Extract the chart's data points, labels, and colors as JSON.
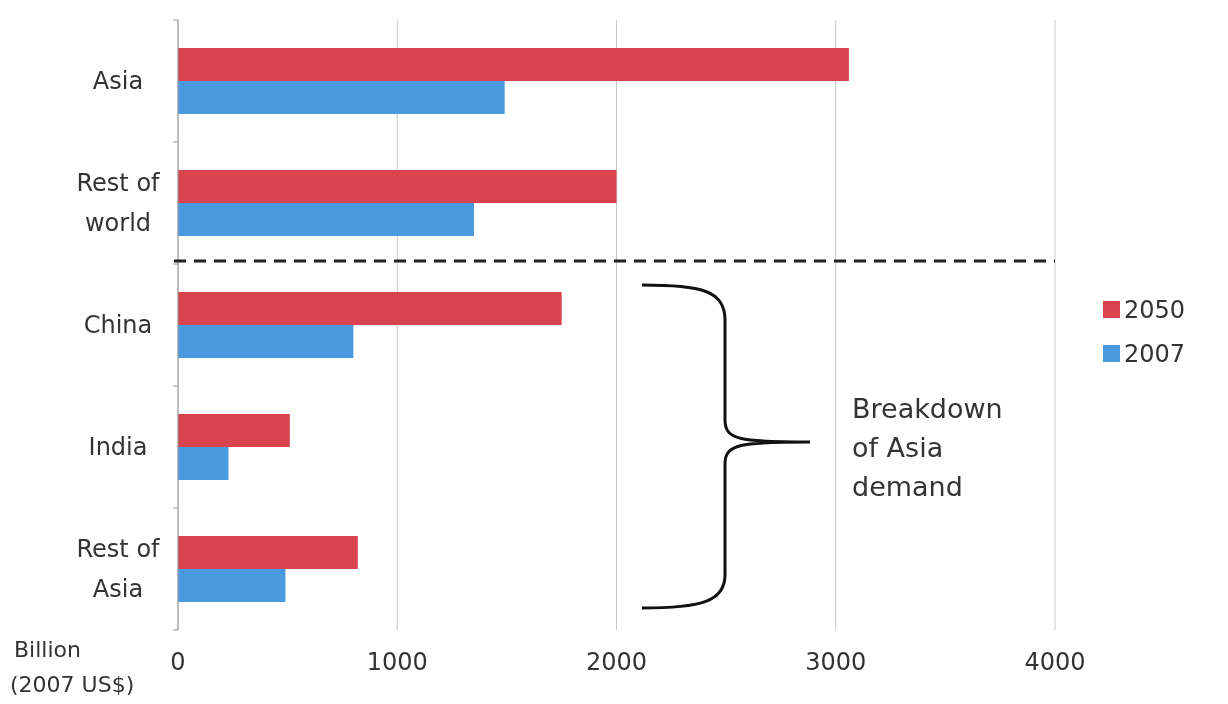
{
  "chart_data": {
    "type": "bar",
    "orientation": "horizontal",
    "categories": [
      "Asia",
      "Rest of world",
      "China",
      "India",
      "Rest of Asia"
    ],
    "series": [
      {
        "name": "2050",
        "color": "#d9434e",
        "values": [
          3060,
          2000,
          1750,
          510,
          820
        ]
      },
      {
        "name": "2007",
        "color": "#4a9ae0",
        "values": [
          1490,
          1350,
          800,
          230,
          490
        ]
      }
    ],
    "xlabel": "Billion (2007 US$)",
    "xlim": [
      0,
      4000
    ],
    "xticks": [
      0,
      1000,
      2000,
      3000,
      4000
    ],
    "grid": "x",
    "legend": "right",
    "annotations": [
      "Breakdown of Asia demand"
    ]
  }
}
